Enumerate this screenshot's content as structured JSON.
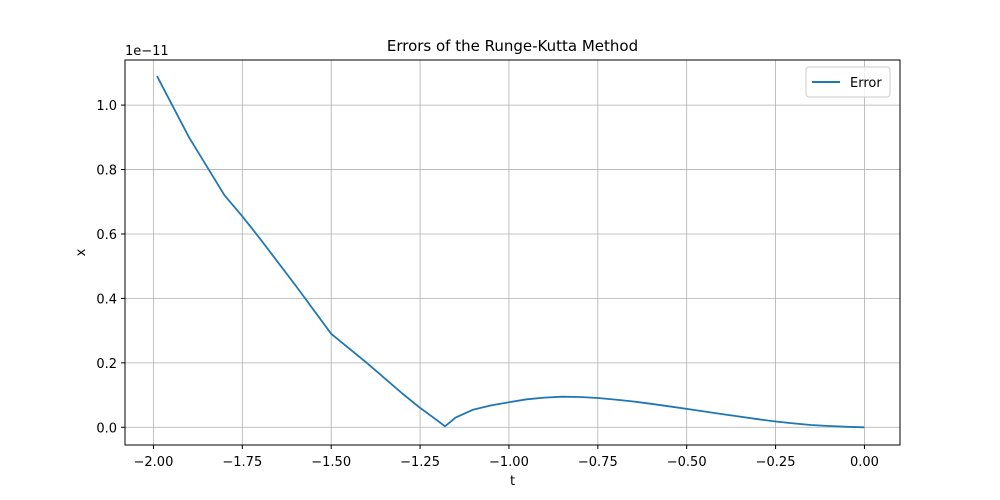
{
  "chart_data": {
    "type": "line",
    "title": "Errors of the Runge-Kutta Method",
    "xlabel": "t",
    "ylabel": "x",
    "y_offset_text": "1e−11",
    "xlim": [
      -2.08,
      0.1
    ],
    "ylim": [
      -0.055,
      1.14
    ],
    "grid": true,
    "legend_position": "top-right",
    "x_ticks": [
      -2.0,
      -1.75,
      -1.5,
      -1.25,
      -1.0,
      -0.75,
      -0.5,
      -0.25,
      0.0
    ],
    "x_tick_labels": [
      "−2.00",
      "−1.75",
      "−1.50",
      "−1.25",
      "−1.00",
      "−0.75",
      "−0.50",
      "−0.25",
      "0.00"
    ],
    "y_ticks": [
      0.0,
      0.2,
      0.4,
      0.6,
      0.8,
      1.0
    ],
    "y_tick_labels": [
      "0.0",
      "0.2",
      "0.4",
      "0.6",
      "0.8",
      "1.0"
    ],
    "series": [
      {
        "name": "Error",
        "color": "#1f77b4",
        "x": [
          -1.99,
          -1.9,
          -1.8,
          -1.75,
          -1.7,
          -1.6,
          -1.5,
          -1.4,
          -1.3,
          -1.25,
          -1.2,
          -1.18,
          -1.15,
          -1.1,
          -1.05,
          -1.0,
          -0.95,
          -0.9,
          -0.85,
          -0.8,
          -0.75,
          -0.7,
          -0.65,
          -0.6,
          -0.55,
          -0.5,
          -0.45,
          -0.4,
          -0.35,
          -0.3,
          -0.25,
          -0.2,
          -0.15,
          -0.1,
          -0.05,
          0.0
        ],
        "y": [
          1.09,
          0.9,
          0.72,
          0.655,
          0.585,
          0.44,
          0.29,
          0.2,
          0.105,
          0.06,
          0.02,
          0.003,
          0.03,
          0.055,
          0.068,
          0.078,
          0.087,
          0.092,
          0.095,
          0.094,
          0.091,
          0.086,
          0.08,
          0.073,
          0.065,
          0.057,
          0.049,
          0.041,
          0.033,
          0.025,
          0.018,
          0.012,
          0.007,
          0.004,
          0.0015,
          0.0
        ]
      }
    ]
  }
}
